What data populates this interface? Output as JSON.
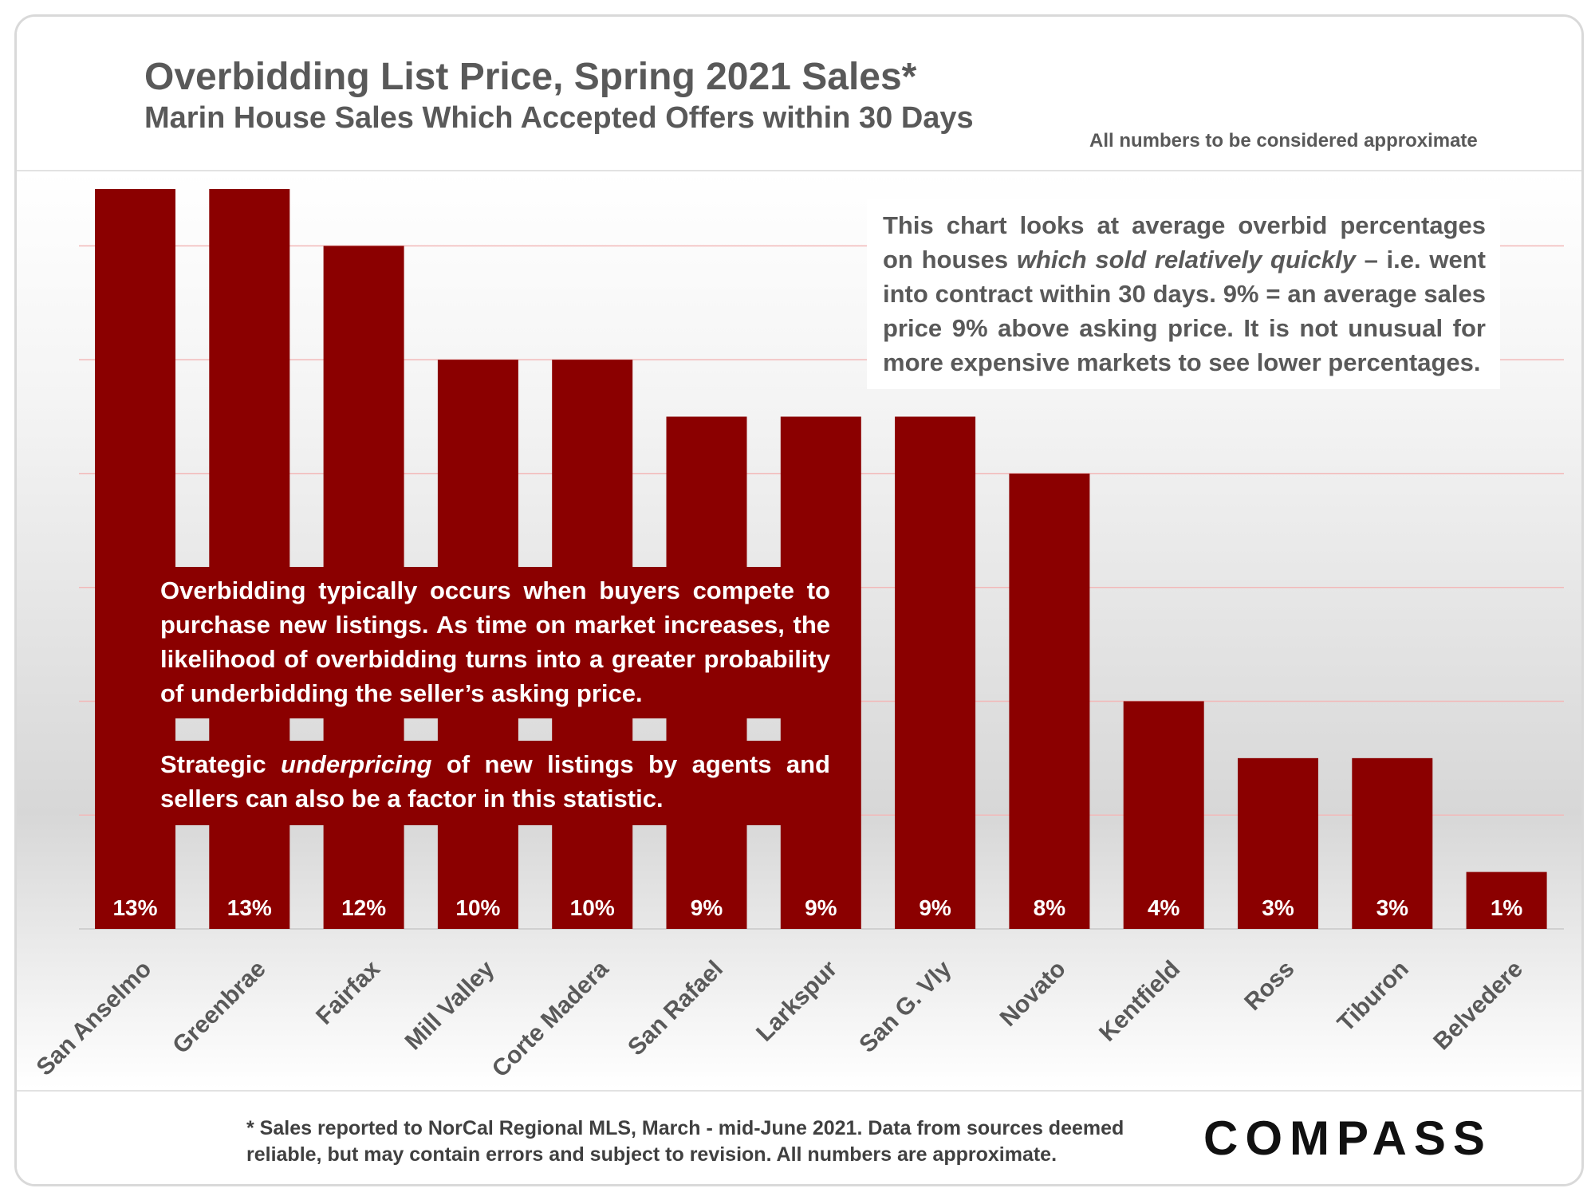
{
  "header": {
    "title": "Overbidding List Price, Spring 2021 Sales*",
    "subtitle": "Marin House Sales Which Accepted Offers within 30 Days",
    "note": "All numbers to be considered approximate"
  },
  "annotations": {
    "right_box": {
      "part1": "This chart looks at average overbid percentages on houses ",
      "part2_italic": "which sold relatively quickly",
      "part3": " – i.e. went into contract within 30 days. 9% = an average sales price 9% above asking price. It is not unusual for more expensive markets to see lower percentages."
    },
    "left_box": "Overbidding typically occurs when buyers compete to purchase new listings. As time on market increases, the likelihood of overbidding turns into a greater probability of underbidding the seller’s asking price.",
    "left_box2": {
      "part1": "Strategic ",
      "part2_italic": "underpricing",
      "part3": " of new listings by agents and sellers can also be a factor in this statistic."
    }
  },
  "footer": {
    "footnote": "* Sales reported to NorCal Regional MLS, March - mid-June 2021. Data from sources deemed reliable, but may contain errors and subject to revision. All numbers are approximate.",
    "logo": "COMPASS"
  },
  "colors": {
    "bar": "#8b0000",
    "gridline": "#f2b8b8",
    "label": "#595959"
  },
  "chart_data": {
    "type": "bar",
    "categories": [
      "San Anselmo",
      "Greenbrae",
      "Fairfax",
      "Mill Valley",
      "Corte Madera",
      "San Rafael",
      "Larkspur",
      "San G. Vly",
      "Novato",
      "Kentfield",
      "Ross",
      "Tiburon",
      "Belvedere"
    ],
    "values": [
      13,
      13,
      12,
      10,
      10,
      9,
      9,
      9,
      8,
      4,
      3,
      3,
      1
    ],
    "data_labels": [
      "13%",
      "13%",
      "12%",
      "10%",
      "10%",
      "9%",
      "9%",
      "9%",
      "8%",
      "4%",
      "3%",
      "3%",
      "1%"
    ],
    "ylim": [
      0,
      13
    ],
    "grid": true,
    "legend": "none"
  }
}
